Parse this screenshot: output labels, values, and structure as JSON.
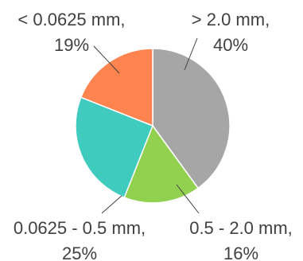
{
  "chart_data": {
    "type": "pie",
    "title": "",
    "slices": [
      {
        "label": "> 2.0 mm",
        "value": 40,
        "percent_label": "40%",
        "color": "#a6a6a6"
      },
      {
        "label": "0.5 - 2.0 mm",
        "value": 16,
        "percent_label": "16%",
        "color": "#92d050"
      },
      {
        "label": "0.0625 - 0.5 mm",
        "value": 25,
        "percent_label": "25%",
        "color": "#3fcbbd"
      },
      {
        "label": "< 0.0625 mm",
        "value": 19,
        "percent_label": "19%",
        "color": "#ff8450"
      }
    ],
    "start_angle_deg": 0,
    "direction": "clockwise",
    "legend": "none",
    "data_labels": "outside with leader lines"
  }
}
